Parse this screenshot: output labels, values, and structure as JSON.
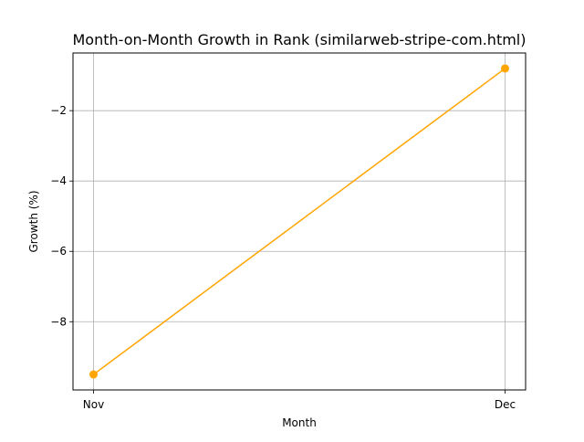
{
  "chart_data": {
    "type": "line",
    "title": "Month-on-Month Growth in Rank (similarweb-stripe-com.html)",
    "xlabel": "Month",
    "ylabel": "Growth (%)",
    "categories": [
      "Nov",
      "Dec"
    ],
    "series": [
      {
        "values": [
          -9.5,
          -0.8
        ],
        "color": "#ffa500"
      }
    ],
    "ylim": [
      -9.94,
      -0.36
    ],
    "yticks": [
      {
        "value": -8,
        "label": "−8"
      },
      {
        "value": -6,
        "label": "−6"
      },
      {
        "value": -4,
        "label": "−4"
      },
      {
        "value": -2,
        "label": "−2"
      }
    ],
    "grid": true,
    "marker": "circle"
  }
}
